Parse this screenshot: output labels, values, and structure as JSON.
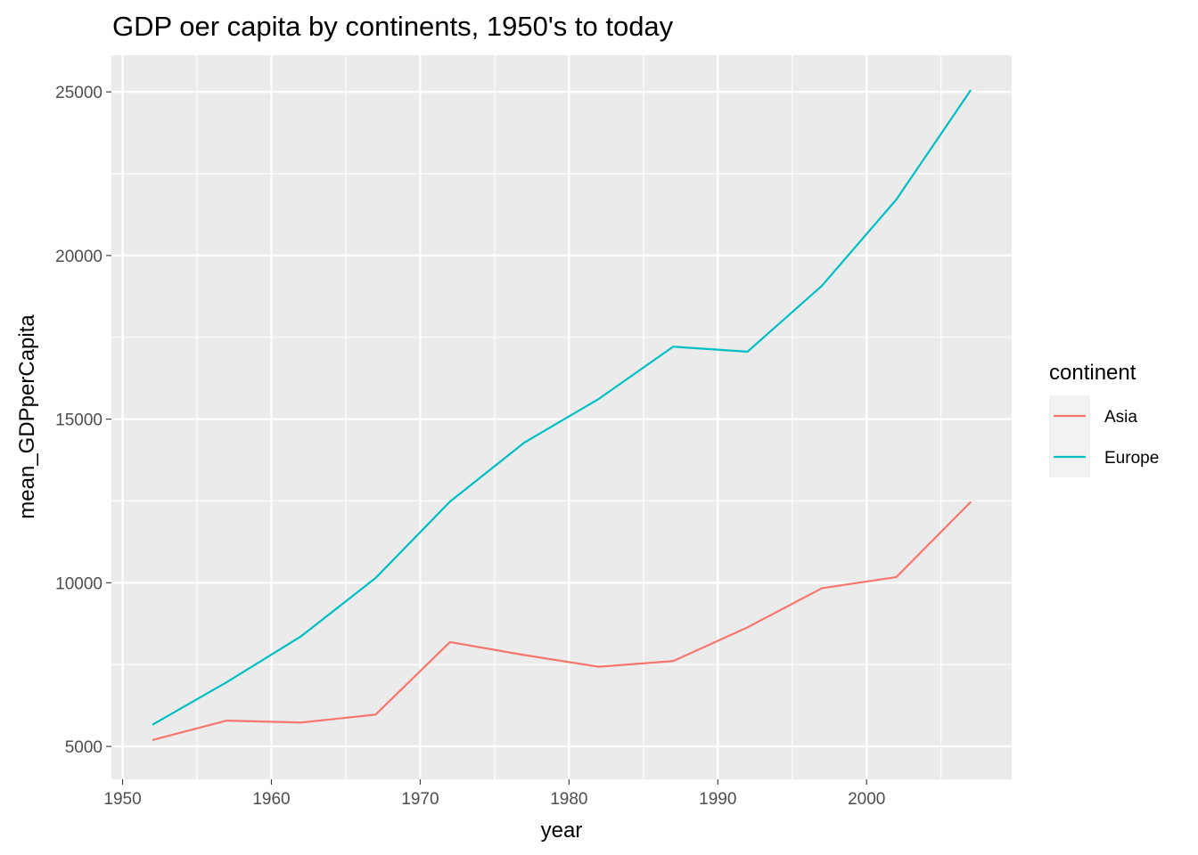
{
  "chart_data": {
    "type": "line",
    "title": "GDP oer capita by continents, 1950's to today",
    "xlabel": "year",
    "ylabel": "mean_GDPperCapita",
    "xlim": [
      1949.25,
      2009.75
    ],
    "ylim": [
      3995,
      26120
    ],
    "x_ticks": [
      1950,
      1960,
      1970,
      1980,
      1990,
      2000
    ],
    "y_ticks": [
      5000,
      10000,
      15000,
      20000,
      25000
    ],
    "grid": true,
    "legend_title": "continent",
    "legend_position": "right",
    "x": [
      1952,
      1957,
      1962,
      1967,
      1972,
      1977,
      1982,
      1987,
      1992,
      1997,
      2002,
      2007
    ],
    "series": [
      {
        "name": "Asia",
        "color": "#F8766D",
        "values": [
          5195,
          5788,
          5729,
          5971,
          8187,
          7791,
          7434,
          7608,
          8640,
          9834,
          10174,
          12473
        ]
      },
      {
        "name": "Europe",
        "color": "#00BFC4",
        "values": [
          5661,
          6963,
          8366,
          10144,
          12480,
          14284,
          15618,
          17214,
          17062,
          19077,
          21712,
          25054
        ]
      }
    ]
  }
}
